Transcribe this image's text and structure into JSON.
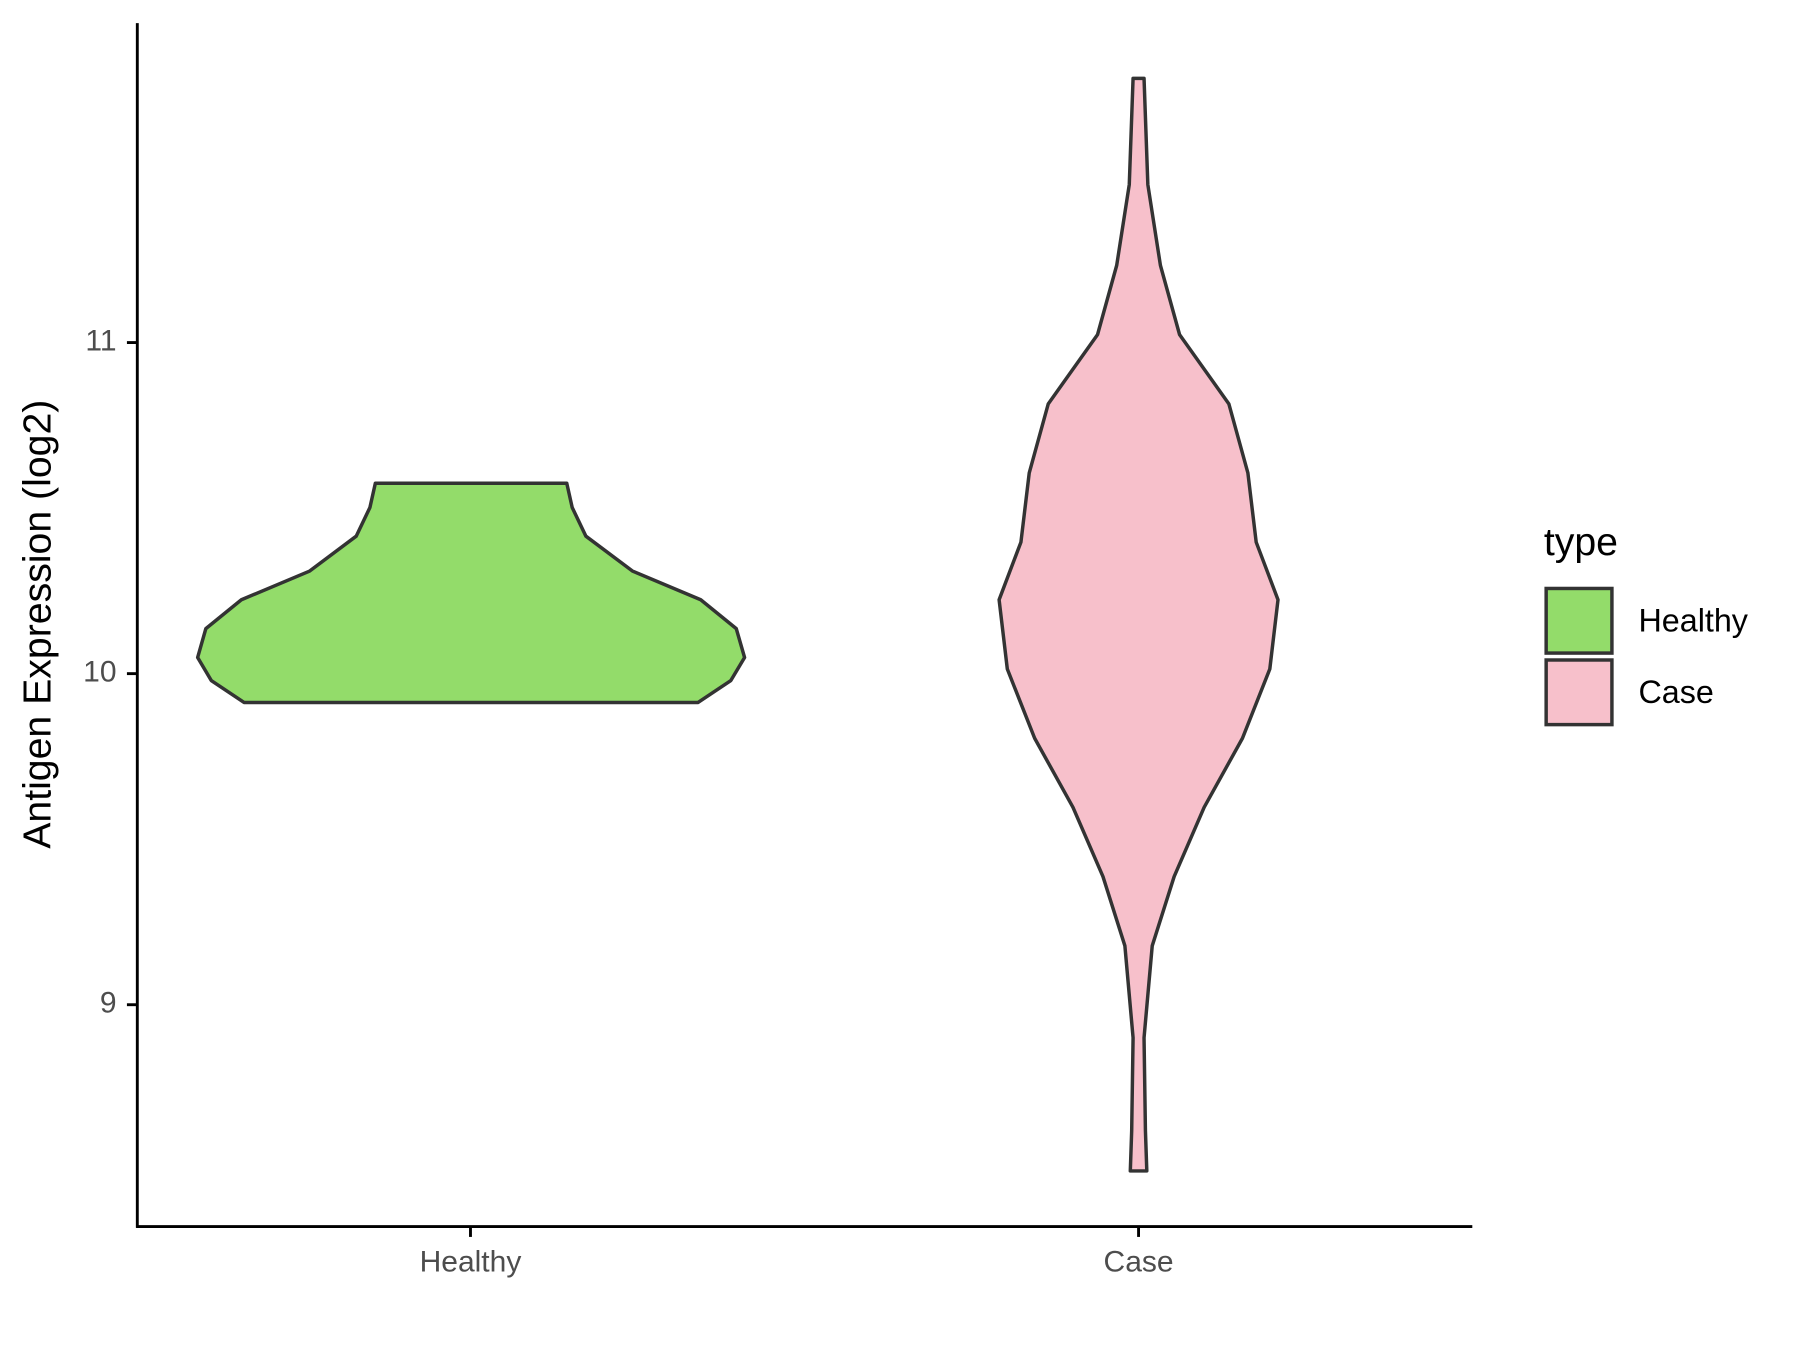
{
  "chart_data": {
    "type": "violin",
    "y_label": "Antigen Expression (log2)",
    "categories": [
      "Healthy",
      "Case"
    ],
    "legend_title": "type",
    "ylim": [
      8.33,
      11.965
    ],
    "yticks": [
      9,
      10,
      11
    ],
    "series": [
      {
        "name": "Healthy",
        "color": "#93dc6a",
        "y": [
          9.913,
          9.979,
          10.049,
          10.136,
          10.223,
          10.31,
          10.415,
          10.502,
          10.575
        ],
        "density": [
          0.83,
          0.95,
          1.0,
          0.97,
          0.84,
          0.59,
          0.42,
          0.37,
          0.35
        ]
      },
      {
        "name": "Case",
        "color": "#f7c0cb",
        "y": [
          8.498,
          8.62,
          8.9,
          9.178,
          9.387,
          9.596,
          9.805,
          10.014,
          10.223,
          10.397,
          10.606,
          10.815,
          11.024,
          11.233,
          11.477,
          11.798
        ],
        "density": [
          0.03,
          0.025,
          0.02,
          0.05,
          0.13,
          0.24,
          0.38,
          0.48,
          0.51,
          0.43,
          0.4,
          0.33,
          0.15,
          0.08,
          0.034,
          0.02
        ]
      }
    ]
  }
}
